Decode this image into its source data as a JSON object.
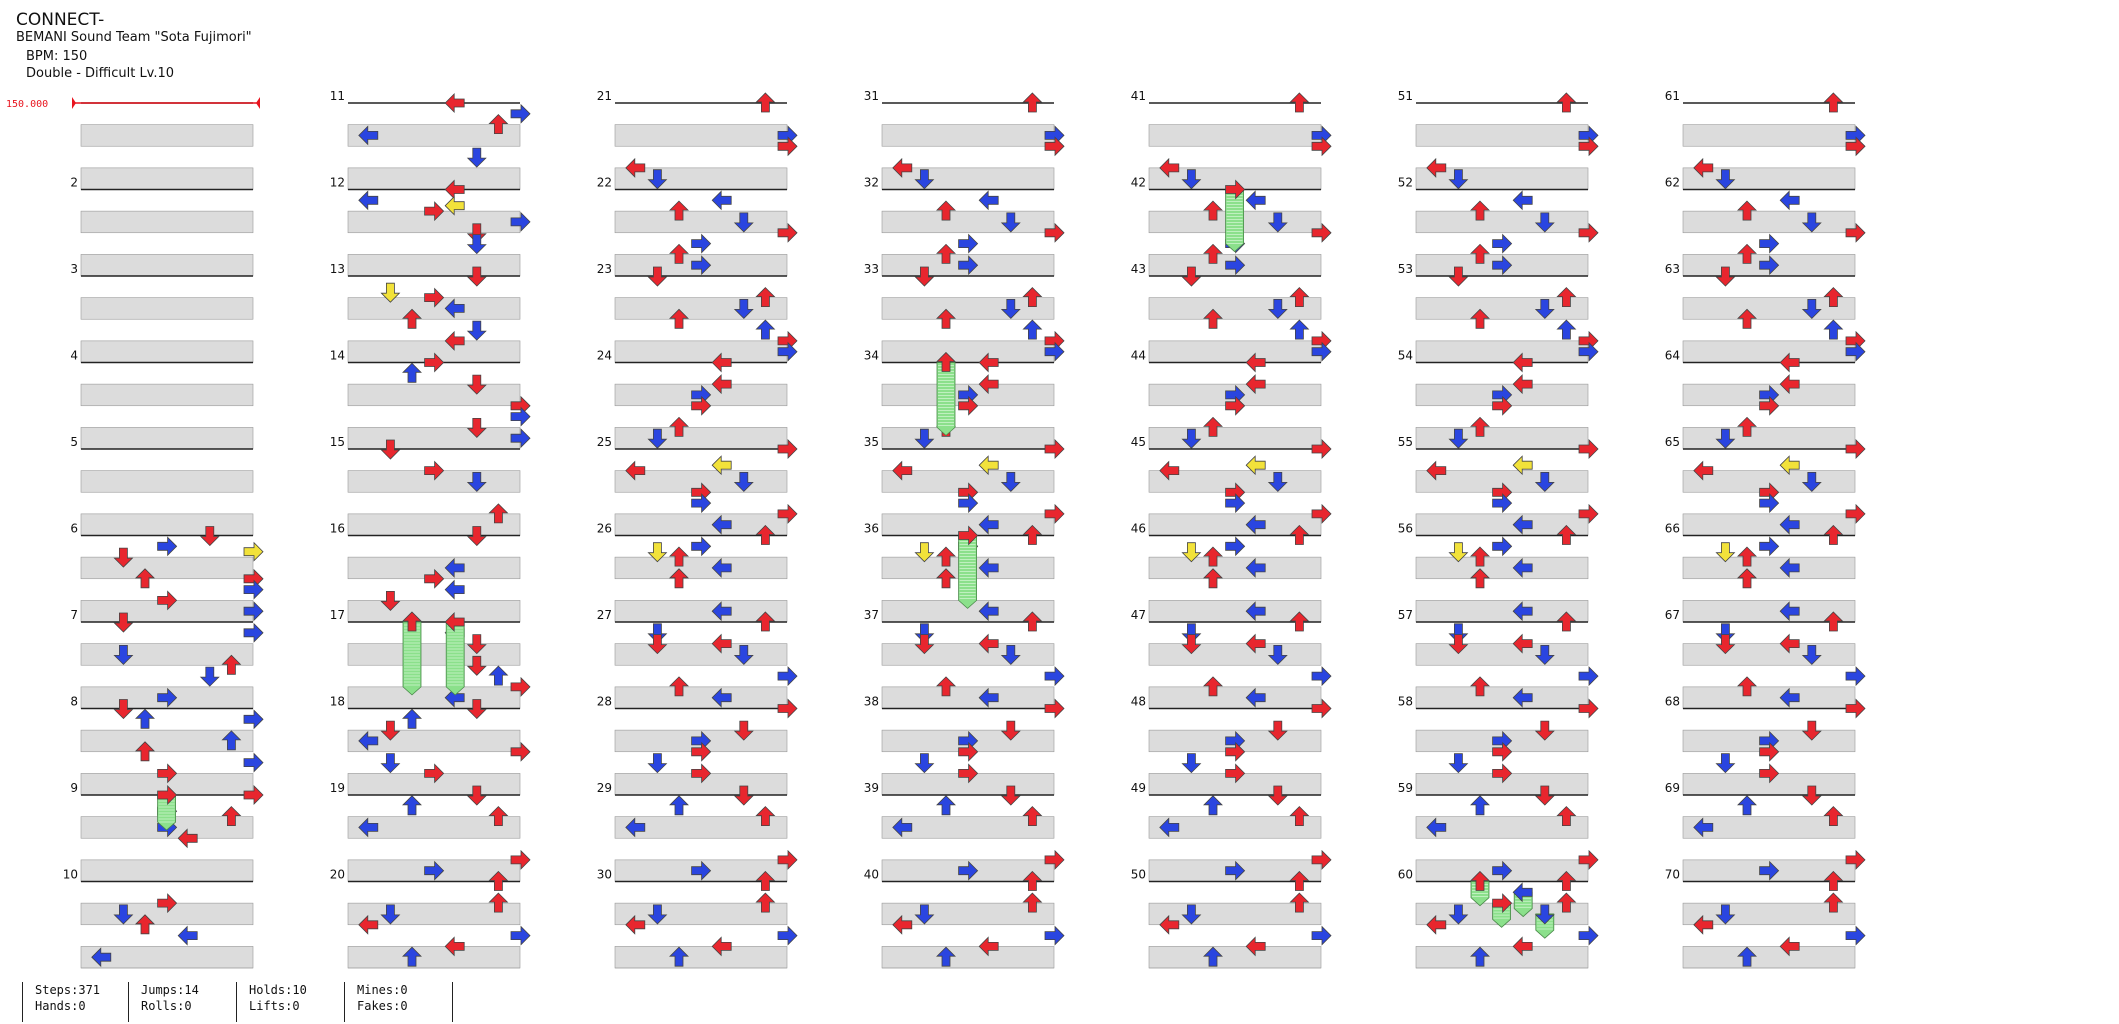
{
  "song": {
    "title": "CONNECT-",
    "artist": "BEMANI Sound Team \"Sota Fujimori\"",
    "bpm_text": "BPM: 150",
    "difficulty_text": "Double - Difficult  Lv.10"
  },
  "chart_data": {
    "type": "step-chart",
    "bpm": 150,
    "bpm_marker": "150.000",
    "total_measures": 70,
    "measures_per_column": 10,
    "columns": 7,
    "lanes": [
      "P1-L",
      "P1-D",
      "P1-U",
      "P1-R",
      "P2-L",
      "P2-D",
      "P2-U",
      "P2-R"
    ]
  },
  "stats": {
    "steps": "Steps:371",
    "hands": "Hands:0",
    "jumps": "Jumps:14",
    "rolls": "Rolls:0",
    "holds": "Holds:10",
    "lifts": "Lifts:0",
    "mines": "Mines:0",
    "fakes": "Fakes:0"
  },
  "colors": {
    "red_note": "#e8262e",
    "blue_note": "#2a45e0",
    "yellow_note": "#f2e23a",
    "hold_body": "#8be08b",
    "beat_shade": "#dcdcdc",
    "bpm_marker": "#e8141e"
  }
}
